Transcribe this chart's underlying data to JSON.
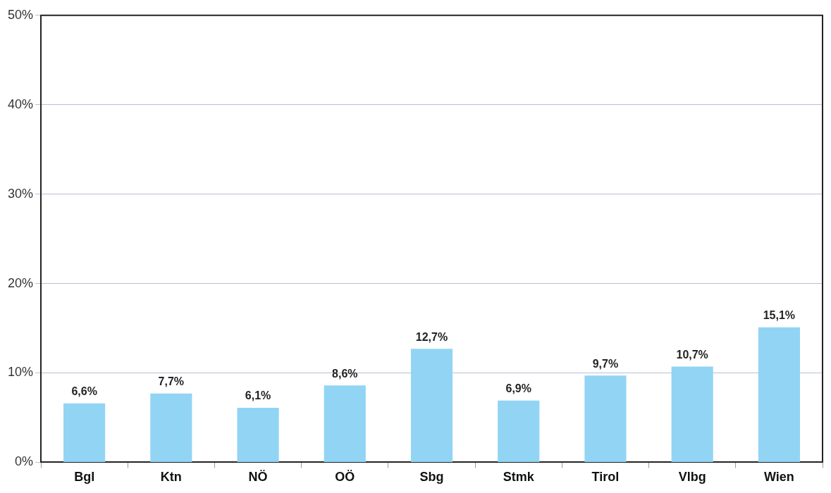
{
  "chart_data": {
    "type": "bar",
    "categories": [
      "Bgl",
      "Ktn",
      "NÖ",
      "OÖ",
      "Sbg",
      "Stmk",
      "Tirol",
      "Vlbg",
      "Wien"
    ],
    "values": [
      6.6,
      7.7,
      6.1,
      8.6,
      12.7,
      6.9,
      9.7,
      10.7,
      15.1
    ],
    "value_labels": [
      "6,6%",
      "7,7%",
      "6,1%",
      "8,6%",
      "12,7%",
      "6,9%",
      "9,7%",
      "10,7%",
      "15,1%"
    ],
    "color": "#92d4f4",
    "ylim": [
      0,
      50
    ],
    "yticks": [
      {
        "value": 0,
        "label": "0%"
      },
      {
        "value": 10,
        "label": "10%"
      },
      {
        "value": 20,
        "label": "20%"
      },
      {
        "value": 30,
        "label": "30%"
      },
      {
        "value": 40,
        "label": "40%"
      },
      {
        "value": 50,
        "label": "50%"
      }
    ],
    "grid": "y",
    "legend": false
  }
}
